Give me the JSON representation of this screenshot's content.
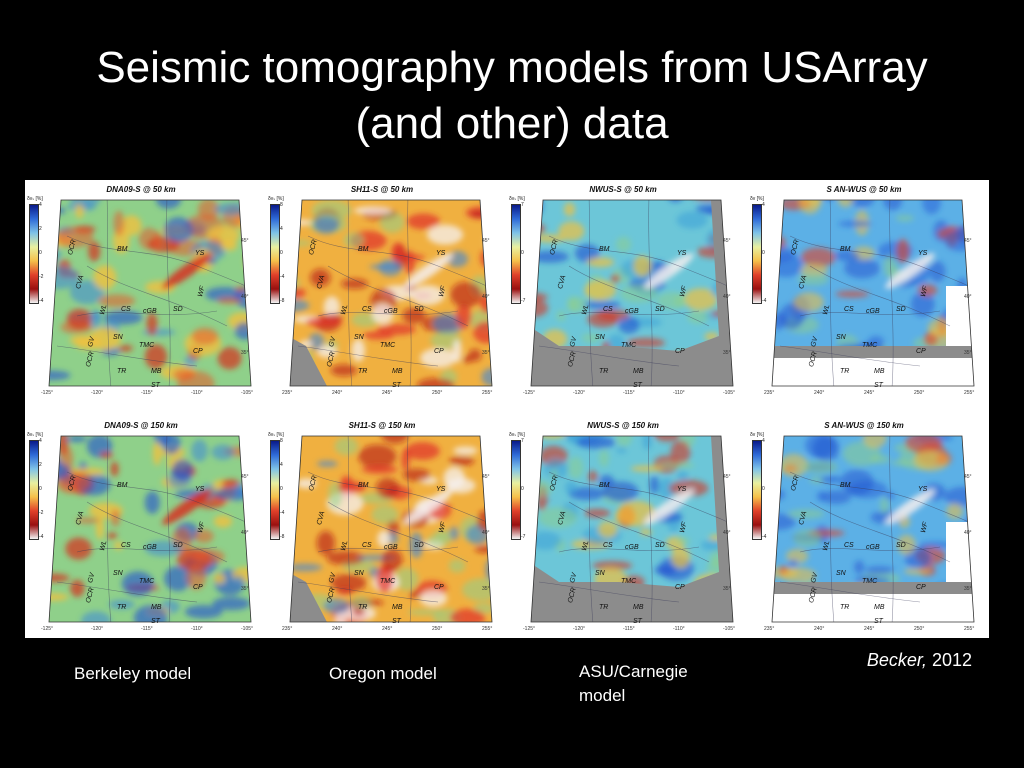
{
  "slide": {
    "title_line1": "Seismic tomography models from USArray",
    "title_line2": "(and other)  data"
  },
  "panels": [
    {
      "title": "DNA09-S @ 50 km",
      "unit": "δvₛ [%]",
      "ticks": [
        "4",
        "2",
        "0",
        "-2",
        "-4"
      ],
      "lon": [
        "-125°",
        "-120°",
        "-115°",
        "-110°",
        "-105°"
      ],
      "lat": [
        "45°",
        "40°",
        "35°"
      ],
      "style": "a"
    },
    {
      "title": "SH11-S @ 50 km",
      "unit": "δvₛ [%]",
      "ticks": [
        "8",
        "4",
        "0",
        "-4",
        "-8"
      ],
      "lon": [
        "235°",
        "240°",
        "245°",
        "250°",
        "255°"
      ],
      "lat": [
        "45°",
        "40°",
        "35°"
      ],
      "style": "b"
    },
    {
      "title": "NWUS-S @ 50 km",
      "unit": "δvₛ [%]",
      "ticks": [
        "7",
        "0",
        "-7"
      ],
      "lon": [
        "-125°",
        "-120°",
        "-115°",
        "-110°",
        "-105°"
      ],
      "lat": [
        "45°",
        "40°",
        "35°"
      ],
      "style": "c"
    },
    {
      "title": "S    AN-WUS @ 50 km",
      "unit": "δv [%]",
      "ticks": [
        "4",
        "0",
        "-4"
      ],
      "lon": [
        "235°",
        "240°",
        "245°",
        "250°",
        "255°"
      ],
      "lat": [
        "45°",
        "40°",
        "35°"
      ],
      "style": "d"
    },
    {
      "title": "DNA09-S @ 150 km",
      "unit": "δvₛ [%]",
      "ticks": [
        "4",
        "2",
        "0",
        "-2",
        "-4"
      ],
      "lon": [
        "-125°",
        "-120°",
        "-115°",
        "-110°",
        "-105°"
      ],
      "lat": [
        "45°",
        "40°",
        "35°"
      ],
      "style": "a"
    },
    {
      "title": "SH11-S @ 150 km",
      "unit": "δvₛ [%]",
      "ticks": [
        "8",
        "4",
        "0",
        "-4",
        "-8"
      ],
      "lon": [
        "235°",
        "240°",
        "245°",
        "250°",
        "255°"
      ],
      "lat": [
        "45°",
        "40°",
        "35°"
      ],
      "style": "b"
    },
    {
      "title": "NWUS-S @ 150 km",
      "unit": "δvₛ [%]",
      "ticks": [
        "7",
        "0",
        "-7"
      ],
      "lon": [
        "-125°",
        "-120°",
        "-115°",
        "-110°",
        "-105°"
      ],
      "lat": [
        "45°",
        "40°",
        "35°"
      ],
      "style": "c"
    },
    {
      "title": "S    AN-WUS @ 150 km",
      "unit": "δv [%]",
      "ticks": [
        "4",
        "0",
        "-4"
      ],
      "lon": [
        "235°",
        "240°",
        "245°",
        "250°",
        "255°"
      ],
      "lat": [
        "45°",
        "40°",
        "35°"
      ],
      "style": "d"
    }
  ],
  "map_labels": [
    "OCR",
    "CVA",
    "BM",
    "YS",
    "CS",
    "cGB",
    "SD",
    "WF",
    "WL",
    "SN",
    "TMC",
    "GV",
    "CP",
    "OCR",
    "TR",
    "MB",
    "ST"
  ],
  "colors": {
    "fast": "#1f4fd0",
    "slow": "#d6301e",
    "neutral": "#8fd08a",
    "mask": "#8c8c8c"
  },
  "captions": {
    "berkeley": "Berkeley model",
    "oregon": "Oregon model",
    "asu_line1": "ASU/Carnegie",
    "asu_line2": "model"
  },
  "citation": {
    "author": "Becker,",
    "year": "2012"
  }
}
